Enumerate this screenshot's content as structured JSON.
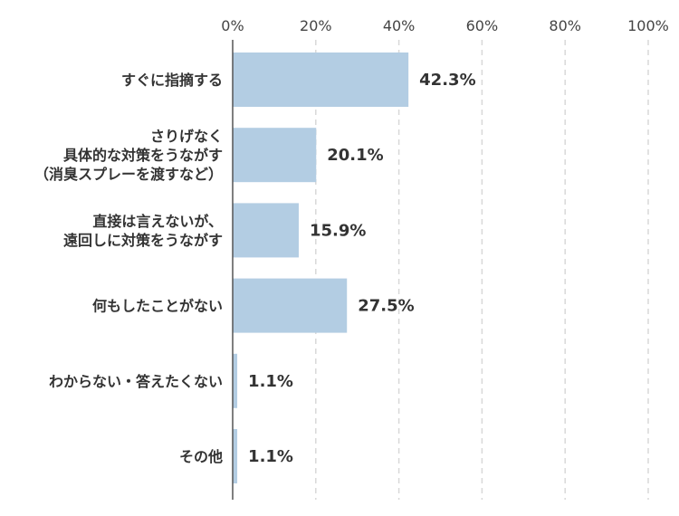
{
  "chart_data": {
    "type": "bar",
    "orientation": "horizontal",
    "categories": [
      [
        "すぐに指摘する"
      ],
      [
        "さりげなく",
        "具体的な対策をうながす",
        "（消臭スプレーを渡すなど）"
      ],
      [
        "直接は言えないが、",
        "遠回しに対策をうながす"
      ],
      [
        "何もしたことがない"
      ],
      [
        "わからない・答えたくない"
      ],
      [
        "その他"
      ]
    ],
    "values": [
      42.3,
      20.1,
      15.9,
      27.5,
      1.1,
      1.1
    ],
    "value_labels": [
      "42.3%",
      "20.1%",
      "15.9%",
      "27.5%",
      "1.1%",
      "1.1%"
    ],
    "xlim": [
      0,
      100
    ],
    "x_ticks": [
      0,
      20,
      40,
      60,
      80,
      100
    ],
    "x_tick_labels": [
      "0%",
      "20%",
      "40%",
      "60%",
      "80%",
      "100%"
    ],
    "x_axis_position": "top",
    "grid": true,
    "bar_color": "#b3cde3",
    "grid_color": "#d8d8d8",
    "axis_color": "#555555"
  }
}
